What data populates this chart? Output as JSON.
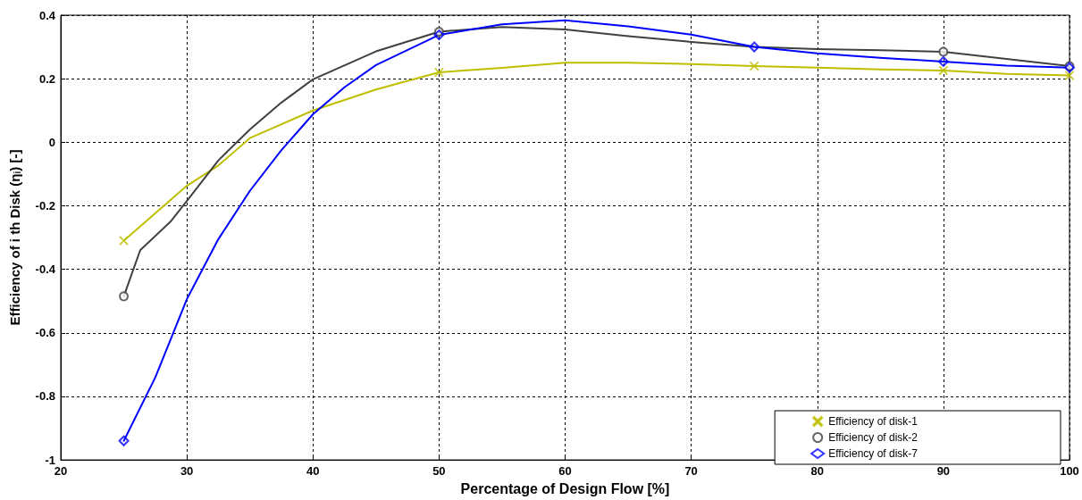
{
  "chart_data": {
    "type": "line",
    "xlabel": "Percentage of Design Flow [%]",
    "ylabel": "Efficiency of i th Disk (η$_{i}$) [-]",
    "xlim": [
      20,
      100
    ],
    "xticks": [
      20,
      30,
      40,
      50,
      60,
      70,
      80,
      90,
      100
    ],
    "ylim": [
      -1,
      0.4
    ],
    "yticks": [
      -1,
      -0.8,
      -0.6,
      -0.4,
      -0.2,
      0,
      0.2,
      0.4
    ],
    "grid": true,
    "legend": "bottom right",
    "series": [
      {
        "marker": "none",
        "color": "#bfbf00",
        "x": [
          25,
          30,
          32.5,
          35,
          40,
          45,
          50,
          55,
          60,
          65,
          70,
          75,
          80,
          85,
          90,
          95,
          100
        ],
        "values": [
          -0.31,
          -0.137,
          -0.073,
          0.013,
          0.1,
          0.166,
          0.22,
          0.234,
          0.25,
          0.25,
          0.246,
          0.24,
          0.235,
          0.229,
          0.226,
          0.215,
          0.21
        ]
      },
      {
        "marker": "none",
        "color": "#404040",
        "x": [
          25,
          26.3,
          28.7,
          30,
          32.5,
          35,
          37.5,
          40,
          45,
          50,
          55,
          60,
          65,
          70,
          75,
          80,
          85,
          90,
          95,
          100
        ],
        "values": [
          -0.485,
          -0.34,
          -0.25,
          -0.185,
          -0.057,
          0.04,
          0.125,
          0.198,
          0.286,
          0.348,
          0.363,
          0.355,
          0.334,
          0.316,
          0.3,
          0.293,
          0.29,
          0.285,
          0.262,
          0.24
        ]
      },
      {
        "marker": "none",
        "color": "#0000ff",
        "x": [
          25,
          27.5,
          30,
          32.5,
          35,
          37.5,
          40,
          42.5,
          45,
          50,
          55,
          60,
          65,
          70,
          75,
          80,
          85,
          90,
          95,
          100
        ],
        "values": [
          -0.94,
          -0.74,
          -0.494,
          -0.305,
          -0.153,
          -0.025,
          0.088,
          0.173,
          0.243,
          0.338,
          0.371,
          0.384,
          0.365,
          0.339,
          0.3,
          0.28,
          0.266,
          0.254,
          0.241,
          0.235
        ]
      },
      {
        "type": "scatter",
        "name": "Efficiency of disk-1",
        "marker": "cross",
        "color": "#bfbf00",
        "x": [
          25,
          50,
          75,
          90,
          100
        ],
        "values": [
          -0.31,
          0.22,
          0.24,
          0.226,
          0.21
        ]
      },
      {
        "type": "scatter",
        "name": "Efficiency of disk-2",
        "marker": "circle",
        "color": "#404040",
        "x": [
          25,
          50,
          75,
          90,
          100
        ],
        "values": [
          -0.485,
          0.348,
          null,
          0.285,
          0.24
        ]
      },
      {
        "type": "scatter",
        "name": "Efficiency of disk-7",
        "marker": "diamond",
        "color": "#0000ff",
        "x": [
          25,
          50,
          75,
          90,
          100
        ],
        "values": [
          -0.94,
          0.338,
          0.3,
          0.254,
          0.235
        ]
      }
    ]
  }
}
